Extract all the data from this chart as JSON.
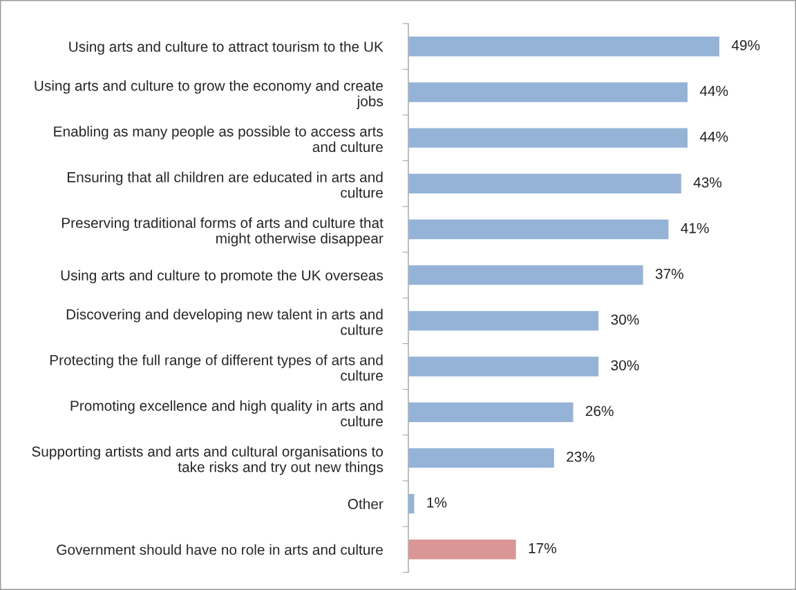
{
  "chart_data": {
    "type": "bar",
    "orientation": "horizontal",
    "categories": [
      "Using arts and culture to attract tourism to the UK",
      "Using arts and culture to grow the economy and create\njobs",
      "Enabling as many people as possible to access arts\nand culture",
      "Ensuring that all children are educated in arts and\nculture",
      "Preserving traditional forms of arts and culture that\nmight otherwise disappear",
      "Using arts and culture to promote the UK overseas",
      "Discovering and developing new talent in arts and\nculture",
      "Protecting the full range of different types of arts and\nculture",
      "Promoting excellence and high quality in arts and\nculture",
      "Supporting artists and arts and cultural organisations to\ntake risks and try out new things",
      "Other",
      "Government should have no role in arts and culture"
    ],
    "values": [
      49,
      44,
      44,
      43,
      41,
      37,
      30,
      30,
      26,
      23,
      1,
      17
    ],
    "colors": [
      "#95b3d7",
      "#95b3d7",
      "#95b3d7",
      "#95b3d7",
      "#95b3d7",
      "#95b3d7",
      "#95b3d7",
      "#95b3d7",
      "#95b3d7",
      "#95b3d7",
      "#95b3d7",
      "#d99694"
    ],
    "value_labels": [
      "49%",
      "44%",
      "44%",
      "43%",
      "41%",
      "37%",
      "30%",
      "30%",
      "26%",
      "23%",
      "1%",
      "17%"
    ],
    "grid": false,
    "legend": false
  }
}
